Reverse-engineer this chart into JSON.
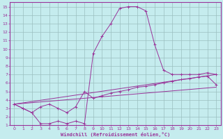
{
  "xlabel": "Windchill (Refroidissement éolien,°C)",
  "background_color": "#c5ecee",
  "grid_color": "#9bbfc0",
  "line_color": "#993399",
  "xlim": [
    -0.5,
    23.5
  ],
  "ylim": [
    1,
    15.5
  ],
  "xticks": [
    0,
    1,
    2,
    3,
    4,
    5,
    6,
    7,
    8,
    9,
    10,
    11,
    12,
    13,
    14,
    15,
    16,
    17,
    18,
    19,
    20,
    21,
    22,
    23
  ],
  "yticks": [
    1,
    2,
    3,
    4,
    5,
    6,
    7,
    8,
    9,
    10,
    11,
    12,
    13,
    14,
    15
  ],
  "curve1_x": [
    0,
    1,
    2,
    3,
    4,
    5,
    6,
    7,
    8,
    9,
    10,
    11,
    12,
    13,
    14,
    15,
    16,
    17,
    18,
    19,
    20,
    21,
    22,
    23
  ],
  "curve1_y": [
    3.5,
    3.0,
    2.5,
    1.2,
    1.2,
    1.5,
    1.2,
    1.5,
    1.2,
    9.5,
    11.5,
    13.0,
    14.8,
    15.0,
    15.0,
    14.5,
    10.5,
    7.5,
    7.0,
    7.0,
    7.0,
    7.0,
    7.2,
    7.0
  ],
  "curve2_x": [
    0,
    1,
    2,
    3,
    4,
    5,
    6,
    7,
    8,
    9,
    10,
    11,
    12,
    13,
    14,
    15,
    16,
    17,
    18,
    19,
    20,
    21,
    22,
    23
  ],
  "curve2_y": [
    3.5,
    3.0,
    2.5,
    3.2,
    3.5,
    3.0,
    2.5,
    3.2,
    5.0,
    4.2,
    4.5,
    4.8,
    5.0,
    5.2,
    5.5,
    5.6,
    5.8,
    6.0,
    6.2,
    6.4,
    6.5,
    6.7,
    6.8,
    5.8
  ],
  "line1_x": [
    0,
    23
  ],
  "line1_y": [
    3.5,
    7.0
  ],
  "line2_x": [
    0,
    23
  ],
  "line2_y": [
    3.5,
    5.5
  ]
}
